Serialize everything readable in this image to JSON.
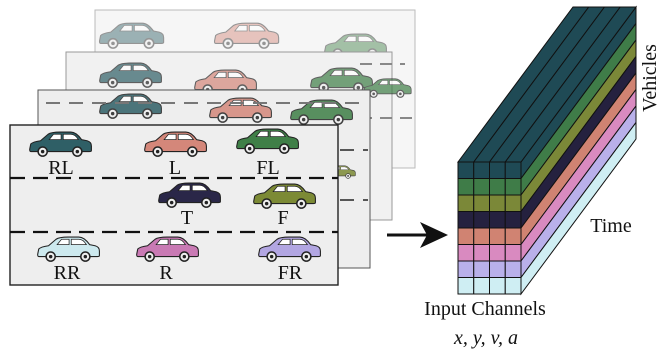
{
  "front_frame": {
    "vehicles": [
      {
        "label": "RL",
        "color": "#2f5f66"
      },
      {
        "label": "L",
        "color": "#d4877a"
      },
      {
        "label": "FL",
        "color": "#3f7f47"
      },
      {
        "label": "T",
        "color": "#2a2748"
      },
      {
        "label": "F",
        "color": "#7c8a35"
      },
      {
        "label": "RR",
        "color": "#cde9ee"
      },
      {
        "label": "R",
        "color": "#c97ab4"
      },
      {
        "label": "FR",
        "color": "#b2a6e2"
      }
    ]
  },
  "tensor": {
    "layer_colors": [
      "#1f4a55",
      "#3f7c48",
      "#7b8838",
      "#25213f",
      "#d08372",
      "#d98ac0",
      "#b9b0ea",
      "#cfeef3"
    ],
    "axis_vehicles": "Vehicles",
    "axis_time": "Time",
    "axis_channels": "Input Channels",
    "channels_math": "x, y, v, a"
  }
}
